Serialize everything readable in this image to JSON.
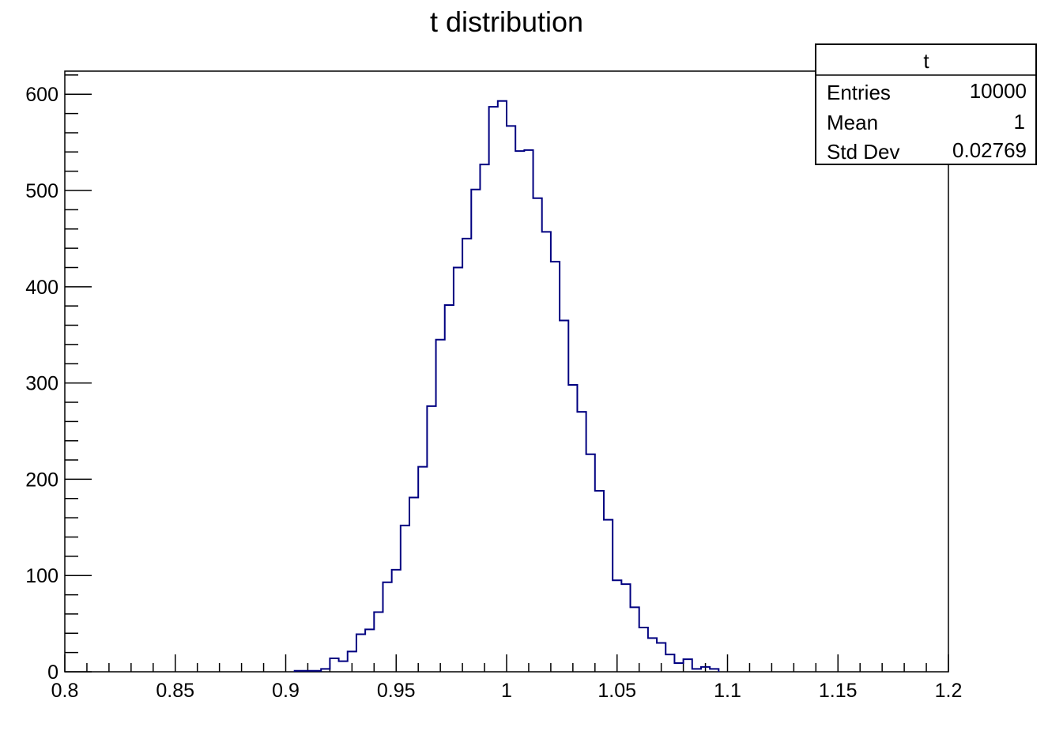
{
  "chart_data": {
    "type": "histogram",
    "title": "t distribution",
    "xlabel": "",
    "ylabel": "",
    "xlim": [
      0.8,
      1.2
    ],
    "ylim": [
      0,
      624
    ],
    "grid": false,
    "legend": "none",
    "line_color": "#000080",
    "x_ticks": [
      "0.8",
      "0.85",
      "0.9",
      "0.95",
      "1",
      "1.05",
      "1.1",
      "1.15",
      "1.2"
    ],
    "y_ticks": [
      "0",
      "100",
      "200",
      "300",
      "400",
      "500",
      "600"
    ],
    "bin_width": 0.004,
    "bin_start": 0.904,
    "counts": [
      1,
      1,
      1,
      3,
      14,
      11,
      21,
      39,
      44,
      62,
      93,
      106,
      152,
      181,
      213,
      276,
      345,
      381,
      420,
      450,
      501,
      527,
      587,
      593,
      567,
      541,
      542,
      492,
      457,
      426,
      365,
      298,
      270,
      226,
      188,
      158,
      95,
      91,
      67,
      46,
      35,
      30,
      18,
      9,
      13,
      3,
      5,
      3
    ]
  },
  "stats_box": {
    "title": "t",
    "rows": [
      {
        "label": "Entries",
        "value": "10000"
      },
      {
        "label": "Mean",
        "value": "1"
      },
      {
        "label": "Std Dev",
        "value": "0.02769"
      }
    ]
  }
}
